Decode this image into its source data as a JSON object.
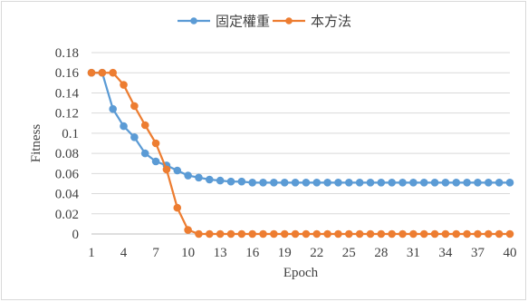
{
  "chart_data": {
    "type": "line",
    "title": "",
    "xlabel": "Epoch",
    "ylabel": "Fitness",
    "ylim": [
      0,
      0.18
    ],
    "xlim": [
      1,
      40
    ],
    "grid": true,
    "legend_position": "top-center",
    "y_ticks": [
      "0",
      "0.02",
      "0.04",
      "0.06",
      "0.08",
      "0.1",
      "0.12",
      "0.14",
      "0.16",
      "0.18"
    ],
    "x_ticks": [
      "1",
      "4",
      "7",
      "10",
      "13",
      "16",
      "19",
      "22",
      "25",
      "28",
      "31",
      "34",
      "37",
      "40"
    ],
    "x": [
      1,
      2,
      3,
      4,
      5,
      6,
      7,
      8,
      9,
      10,
      11,
      12,
      13,
      14,
      15,
      16,
      17,
      18,
      19,
      20,
      21,
      22,
      23,
      24,
      25,
      26,
      27,
      28,
      29,
      30,
      31,
      32,
      33,
      34,
      35,
      36,
      37,
      38,
      39,
      40
    ],
    "series": [
      {
        "name": "固定權重",
        "color": "#5b9bd5",
        "values": [
          0.16,
          0.16,
          0.124,
          0.107,
          0.096,
          0.08,
          0.072,
          0.068,
          0.063,
          0.058,
          0.056,
          0.054,
          0.053,
          0.052,
          0.052,
          0.051,
          0.051,
          0.051,
          0.051,
          0.051,
          0.051,
          0.051,
          0.051,
          0.051,
          0.051,
          0.051,
          0.051,
          0.051,
          0.051,
          0.051,
          0.051,
          0.051,
          0.051,
          0.051,
          0.051,
          0.051,
          0.051,
          0.051,
          0.051,
          0.051
        ]
      },
      {
        "name": "本方法",
        "color": "#ed7d31",
        "values": [
          0.16,
          0.16,
          0.16,
          0.148,
          0.127,
          0.108,
          0.09,
          0.064,
          0.026,
          0.004,
          0.0,
          0.0,
          0.0,
          0.0,
          0.0,
          0.0,
          0.0,
          0.0,
          0.0,
          0.0,
          0.0,
          0.0,
          0.0,
          0.0,
          0.0,
          0.0,
          0.0,
          0.0,
          0.0,
          0.0,
          0.0,
          0.0,
          0.0,
          0.0,
          0.0,
          0.0,
          0.0,
          0.0,
          0.0,
          0.0
        ]
      }
    ]
  }
}
